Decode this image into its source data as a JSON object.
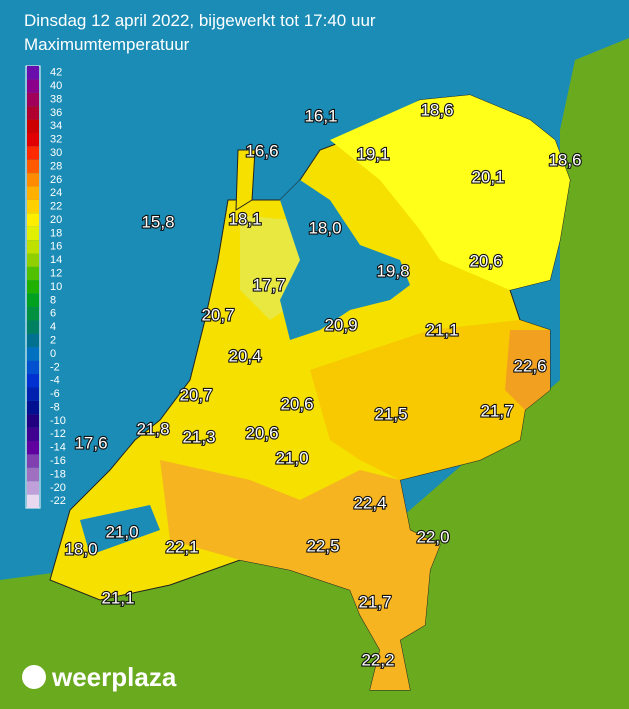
{
  "header": {
    "title": "Dinsdag 12 april 2022, bijgewerkt tot 17:40 uur",
    "subtitle": "Maximumtemperatuur"
  },
  "legend": {
    "values": [
      42,
      40,
      38,
      36,
      34,
      32,
      30,
      28,
      26,
      24,
      22,
      20,
      18,
      16,
      14,
      12,
      10,
      8,
      6,
      4,
      2,
      0,
      -2,
      -4,
      -6,
      -8,
      -10,
      -12,
      -14,
      -16,
      -18,
      -20,
      -22
    ],
    "colors": [
      "#6a0dad",
      "#8b008b",
      "#a0005a",
      "#b00030",
      "#cc0000",
      "#e00000",
      "#ff2a00",
      "#ff5a00",
      "#ff8c00",
      "#ffb000",
      "#ffd000",
      "#ffee00",
      "#e0f000",
      "#c0e000",
      "#90d000",
      "#50c000",
      "#20b000",
      "#00a020",
      "#009040",
      "#008060",
      "#007090",
      "#0070c0",
      "#0050d0",
      "#0030d0",
      "#0020b0",
      "#001090",
      "#200080",
      "#400090",
      "#6000a0",
      "#8040b0",
      "#a070c0",
      "#c0a0d8",
      "#e8d8f0"
    ]
  },
  "labels": [
    "16,1",
    "18,6",
    "16,6",
    "19,1",
    "18,6",
    "20,1",
    "15,8",
    "18,1",
    "18,0",
    "19,8",
    "20,6",
    "17,7",
    "20,7",
    "20,9",
    "21,1",
    "22,6",
    "20,4",
    "20,7",
    "20,6",
    "21,5",
    "21,7",
    "21,8",
    "21,3",
    "20,6",
    "17,6",
    "21,0",
    "22,4",
    "21,0",
    "22,1",
    "22,5",
    "22,0",
    "18,0",
    "21,1",
    "21,7",
    "22,2"
  ],
  "logo": "weerplaza"
}
